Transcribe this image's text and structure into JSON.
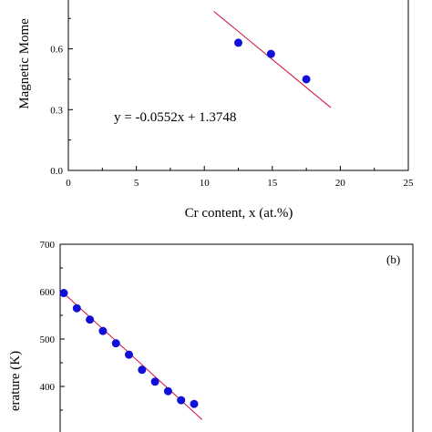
{
  "chart_data": [
    {
      "type": "scatter",
      "xlabel": "Cr content, x (at.%)",
      "ylabel": "Magnetic Mome",
      "xlim": [
        0,
        25
      ],
      "ylim": [
        0,
        0.85
      ],
      "x_ticks": [
        "0",
        "5",
        "10",
        "15",
        "20",
        "25"
      ],
      "y_ticks": [
        "0.0",
        "0.3",
        "0.6"
      ],
      "annotation": "y = -0.0552x + 1.3748",
      "series": [
        {
          "color": "#1010d8",
          "x": [
            12.5,
            14.9,
            17.5
          ],
          "y": [
            0.63,
            0.575,
            0.45
          ]
        }
      ],
      "fit_line": {
        "color": "#d0103a",
        "x": [
          10.7,
          19.3
        ],
        "y": [
          0.785,
          0.31
        ]
      }
    },
    {
      "type": "scatter",
      "panel_label": "(b)",
      "ylabel": "erature (K)",
      "ylim": [
        325,
        700
      ],
      "y_ticks": [
        "400",
        "500",
        "600",
        "700"
      ],
      "series": [
        {
          "color": "#1010d8",
          "x": [
            0,
            1,
            2,
            3,
            4,
            5,
            6,
            7,
            8,
            9,
            10
          ],
          "y": [
            597,
            565,
            541,
            517,
            491,
            467,
            435,
            410,
            390,
            371,
            363
          ]
        }
      ],
      "fit_line": {
        "color": "#d0103a",
        "x": [
          0,
          10.75
        ],
        "y": [
          600,
          330
        ]
      }
    }
  ]
}
